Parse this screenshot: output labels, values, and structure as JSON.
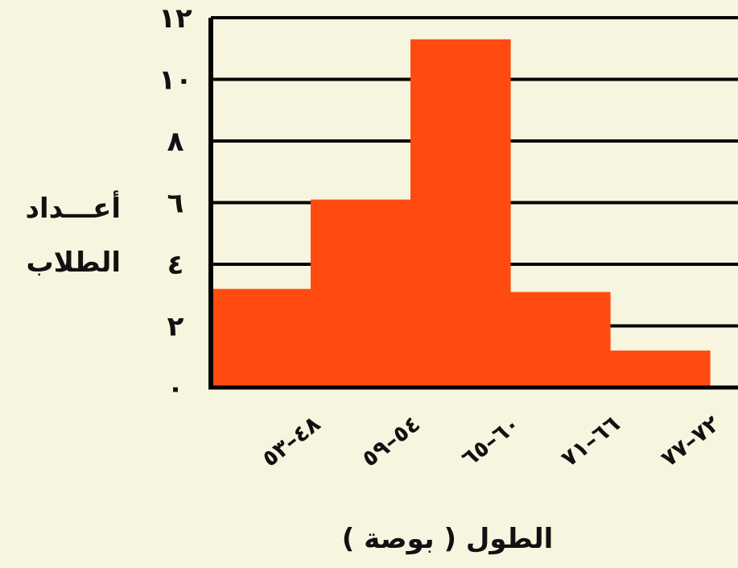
{
  "chart_data": {
    "type": "bar",
    "title": "",
    "xlabel": "الطول ( بوصة )",
    "ylabel": [
      "أعـــداد",
      "الطلاب"
    ],
    "categories": [
      "٤٨–٥٣",
      "٥٤–٥٩",
      "٦٠–٦٥",
      "٦٦–٧١",
      "٧٢–٧٧"
    ],
    "values": [
      3.2,
      6.1,
      11.3,
      3.1,
      1.2
    ],
    "yticks": [
      0,
      2,
      4,
      6,
      8,
      10,
      12
    ],
    "ytick_labels": [
      "٠",
      "٢",
      "٤",
      "٦",
      "٨",
      "١٠",
      "١٢"
    ],
    "ylim": [
      0,
      12
    ],
    "grid": true,
    "legend": "none",
    "colors": {
      "bar": "#ff4a10",
      "axis": "#000000",
      "background": "#f7f5df"
    }
  }
}
